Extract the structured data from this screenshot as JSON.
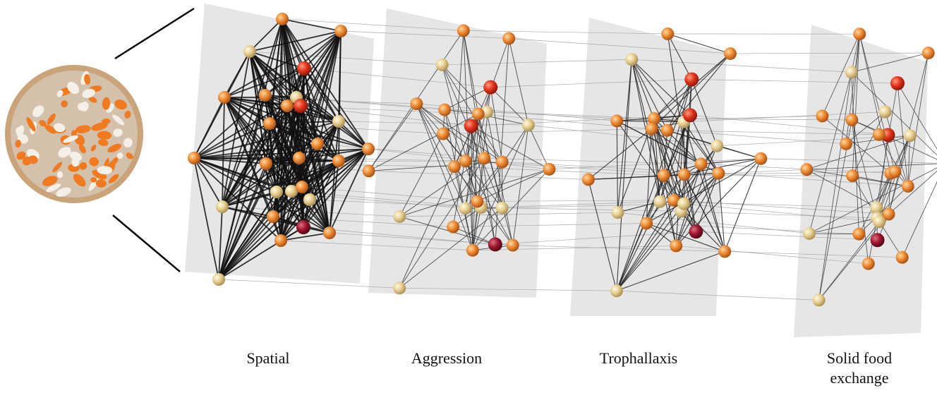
{
  "layers": [
    {
      "label": "Spatial"
    },
    {
      "label": "Aggression"
    },
    {
      "label": "Trophallaxis"
    },
    {
      "label": "Solid food exchange"
    }
  ]
}
